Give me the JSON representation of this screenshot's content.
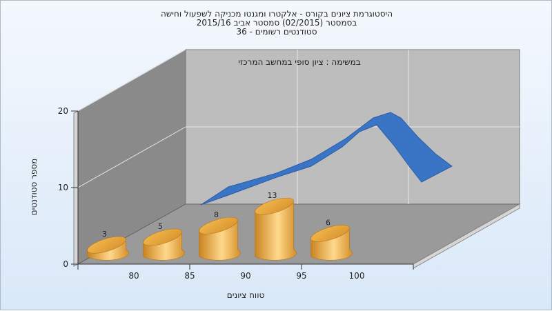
{
  "chart_data": {
    "type": "bar",
    "title_lines": [
      "היסטוגרמת ציונים בקורס - אלקטרו ומגנטו מכניקה לשפעול וחישה",
      "בסמסטר  (02/2015)  סמסטר אביב 2015/16",
      "סטודנטים רשומים - 36"
    ],
    "annotation": "במשימה : ציון סופי במחשב המרכזי",
    "xlabel": "טווח ציונים",
    "ylabel": "מספר סטודנטים",
    "categories": [
      "80",
      "85",
      "90",
      "95",
      "100"
    ],
    "values": [
      3,
      5,
      8,
      13,
      6
    ],
    "y_ticks": [
      "0",
      "10",
      "20"
    ],
    "ylim": [
      0,
      20
    ],
    "grid": true,
    "bar_color": "#e8a53a",
    "trend_color": "#3a74c4"
  }
}
